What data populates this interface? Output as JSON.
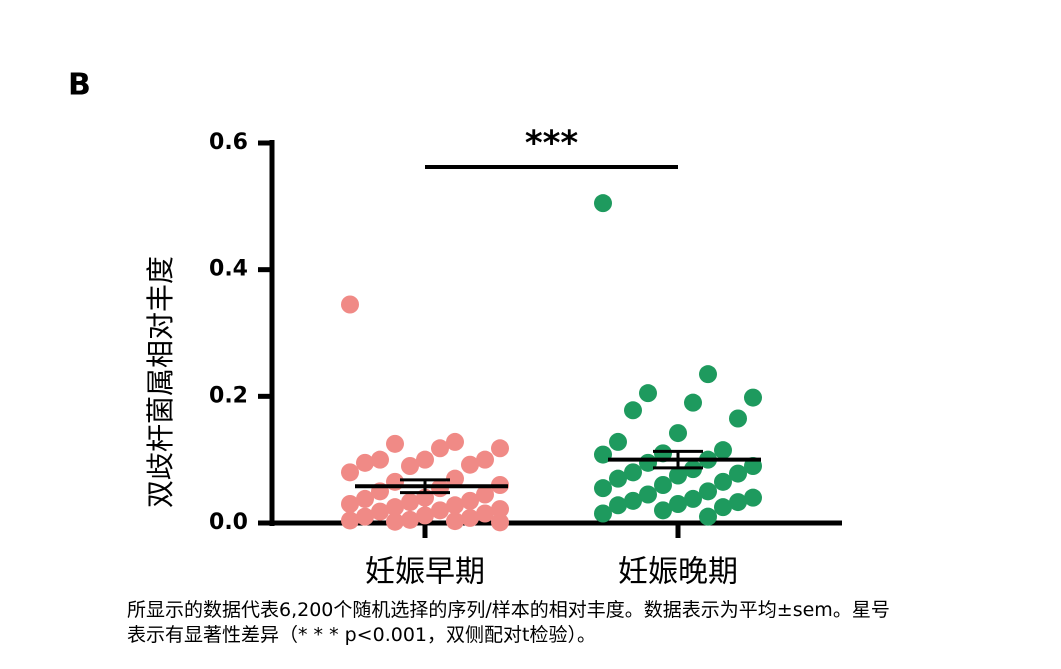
{
  "chart_data": {
    "type": "dot",
    "panel_label": "B",
    "y_label": "双歧杆菌属相对丰度",
    "significance": "***",
    "groups": [
      {
        "name": "妊娠早期",
        "color": "#f08a86",
        "values": [
          0.345,
          0.128,
          0.125,
          0.118,
          0.118,
          0.1,
          0.1,
          0.1,
          0.095,
          0.092,
          0.09,
          0.08,
          0.07,
          0.065,
          0.06,
          0.055,
          0.05,
          0.045,
          0.04,
          0.038,
          0.035,
          0.033,
          0.03,
          0.028,
          0.025,
          0.022,
          0.02,
          0.018,
          0.015,
          0.012,
          0.01,
          0.008,
          0.005,
          0.004,
          0.003,
          0.002,
          0.001
        ],
        "mean": 0.058,
        "sem": 0.01
      },
      {
        "name": "妊娠晚期",
        "color": "#1e9a5e",
        "values": [
          0.505,
          0.235,
          0.205,
          0.198,
          0.19,
          0.178,
          0.165,
          0.142,
          0.128,
          0.115,
          0.11,
          0.108,
          0.1,
          0.095,
          0.09,
          0.085,
          0.08,
          0.078,
          0.075,
          0.07,
          0.065,
          0.06,
          0.055,
          0.05,
          0.045,
          0.04,
          0.038,
          0.035,
          0.033,
          0.03,
          0.028,
          0.025,
          0.02,
          0.015,
          0.01
        ],
        "mean": 0.1,
        "sem": 0.013
      }
    ],
    "ylim": [
      0,
      0.6
    ],
    "yticks": [
      {
        "value": 0,
        "label": "0.0"
      },
      0.2,
      0.4,
      0.6
    ],
    "caption": [
      "所显示的数据代表6,200个随机选择的序列/样本的相对丰度。数据表示为平均±sem。星号",
      "表示有显著性差异（* * * p<0.001，双侧配对t检验）。"
    ]
  }
}
